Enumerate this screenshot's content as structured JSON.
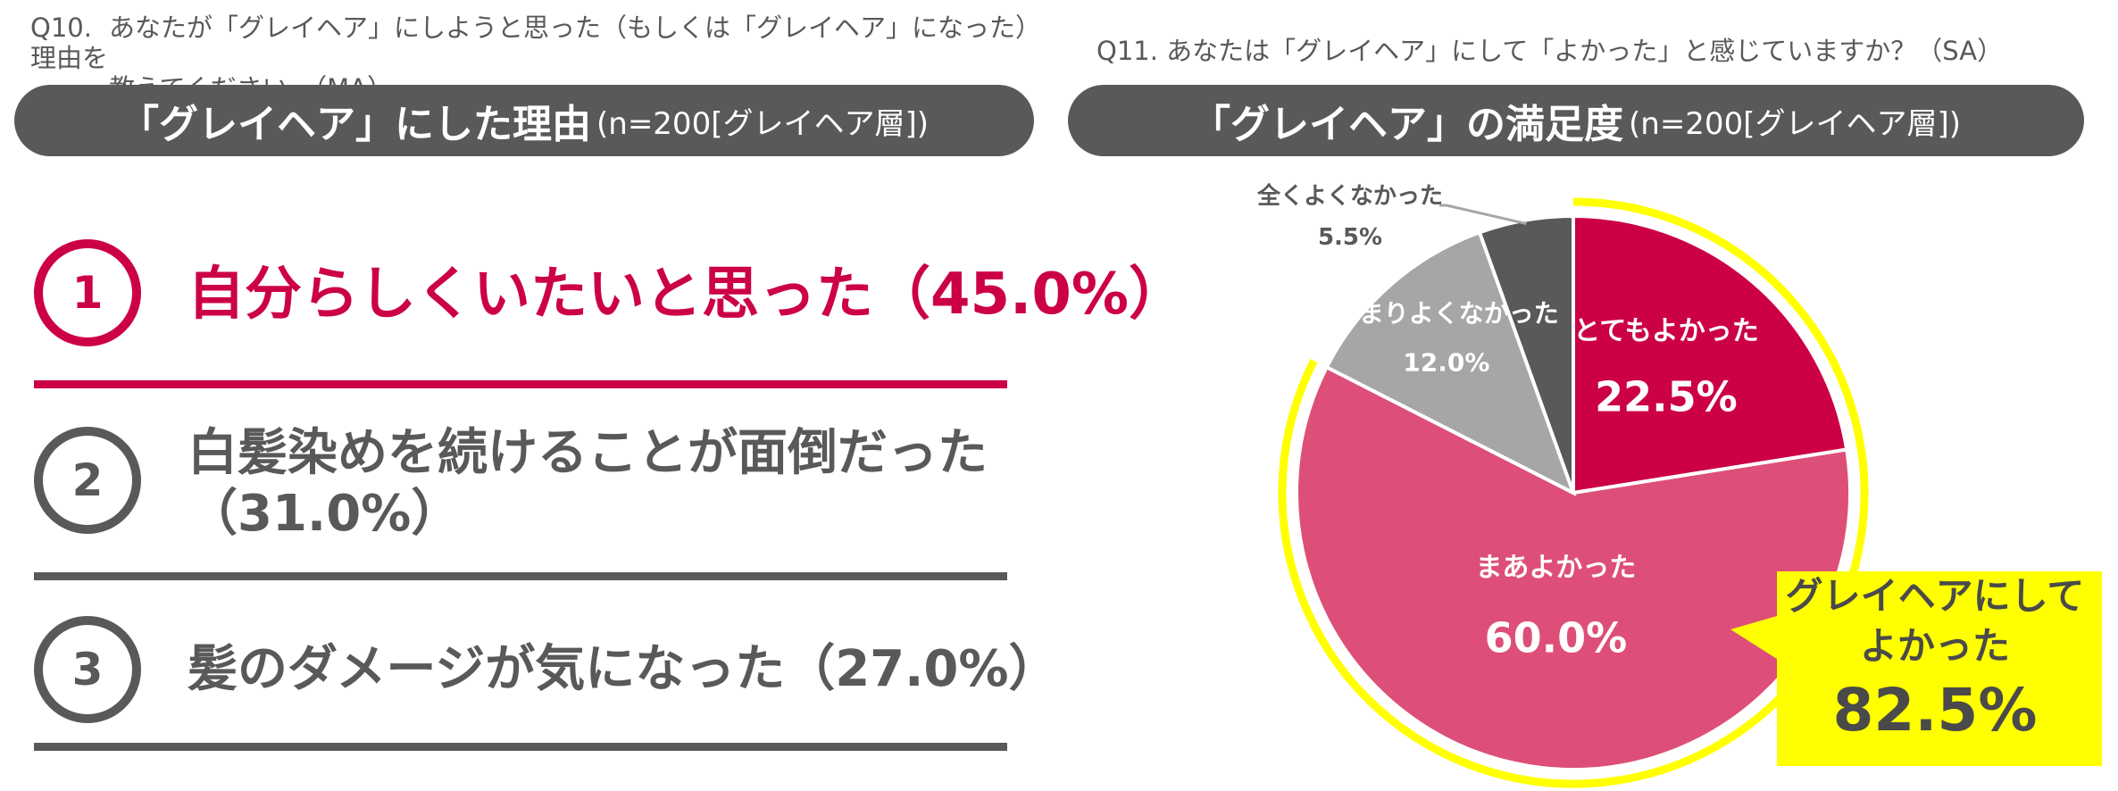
{
  "left": {
    "question_number": "Q10.",
    "question_line1": "あなたが「グレイヘア」にしようと思った（もしくは「グレイヘア」になった）理由を",
    "question_line2": "教えてください。（MA）",
    "banner_title": "「グレイヘア」にした理由",
    "banner_sample": "(n=200[グレイヘア層])",
    "reasons": [
      {
        "rank": "1",
        "text": "自分らしくいたいと思った（45.0%）"
      },
      {
        "rank": "2",
        "text_line1": "白髪染めを続けることが面倒だった",
        "text_line2": "（31.0%）"
      },
      {
        "rank": "3",
        "text": "髪のダメージが気になった（27.0%）"
      }
    ]
  },
  "right": {
    "question": "Q11. あなたは「グレイヘア」にして「よかった」と感じていますか？（SA）",
    "banner_title": "「グレイヘア」の満足度",
    "banner_sample": "(n=200[グレイヘア層])",
    "callout_text": "グレイヘアにして\nよかった",
    "callout_value": "82.5%"
  },
  "colors": {
    "accent": "#cc0044",
    "dark_gray": "#595959",
    "highlight_yellow": "#ffff00"
  },
  "chart_data": {
    "type": "pie",
    "title": "「グレイヘア」の満足度",
    "slices": [
      {
        "label": "とてもよかった",
        "value": 22.5,
        "value_label": "22.5%",
        "color": "#cc0044"
      },
      {
        "label": "まあよかった",
        "value": 60.0,
        "value_label": "60.0%",
        "color": "#dd4f78"
      },
      {
        "label": "あまりよくなかった",
        "value": 12.0,
        "value_label": "12.0%",
        "color": "#a6a6a6"
      },
      {
        "label": "全くよくなかった",
        "value": 5.5,
        "value_label": "5.5%",
        "color": "#595959"
      }
    ],
    "highlight_total": "82.5%"
  }
}
